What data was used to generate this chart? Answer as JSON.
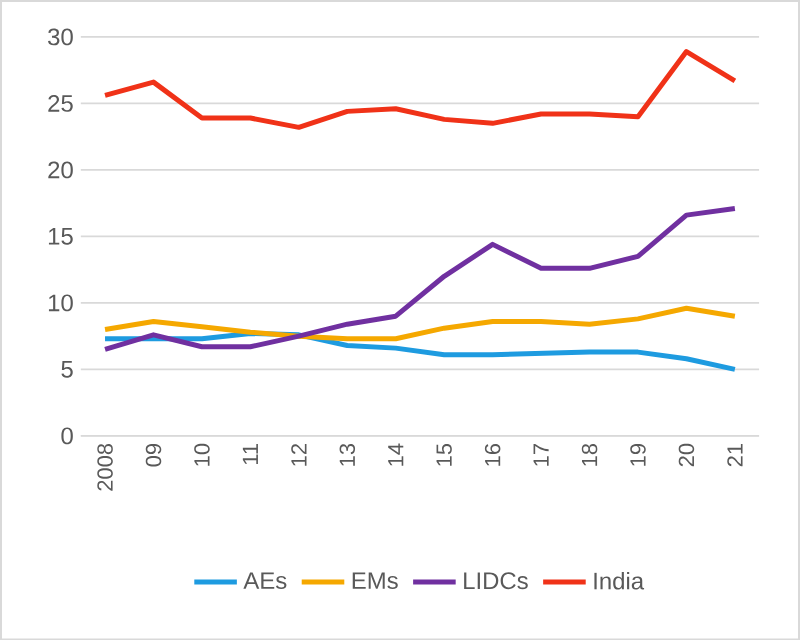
{
  "chart_data": {
    "type": "line",
    "categories": [
      "2008",
      "09",
      "10",
      "11",
      "12",
      "13",
      "14",
      "15",
      "16",
      "17",
      "18",
      "19",
      "20",
      "21"
    ],
    "series": [
      {
        "name": "AEs",
        "color": "#1e9be0",
        "values": [
          7.3,
          7.3,
          7.3,
          7.7,
          7.6,
          6.8,
          6.6,
          6.1,
          6.1,
          6.2,
          6.3,
          6.3,
          5.8,
          5.0
        ]
      },
      {
        "name": "EMs",
        "color": "#f5a800",
        "values": [
          8.0,
          8.6,
          8.2,
          7.8,
          7.5,
          7.3,
          7.3,
          8.1,
          8.6,
          8.6,
          8.4,
          8.8,
          9.6,
          9.0
        ]
      },
      {
        "name": "LIDCs",
        "color": "#7030a0",
        "values": [
          6.5,
          7.6,
          6.7,
          6.7,
          7.5,
          8.4,
          9.0,
          12.0,
          14.4,
          12.6,
          12.6,
          13.5,
          16.6,
          17.1
        ]
      },
      {
        "name": "India",
        "color": "#f03218",
        "values": [
          25.6,
          26.6,
          23.9,
          23.9,
          23.2,
          24.4,
          24.6,
          23.8,
          23.5,
          24.2,
          24.2,
          24.0,
          28.9,
          26.7
        ]
      }
    ],
    "ylim": [
      0,
      30
    ],
    "yticks": [
      0,
      5,
      10,
      15,
      20,
      25,
      30
    ],
    "grid": "y",
    "legend": "bottom",
    "line_style": "solid"
  }
}
